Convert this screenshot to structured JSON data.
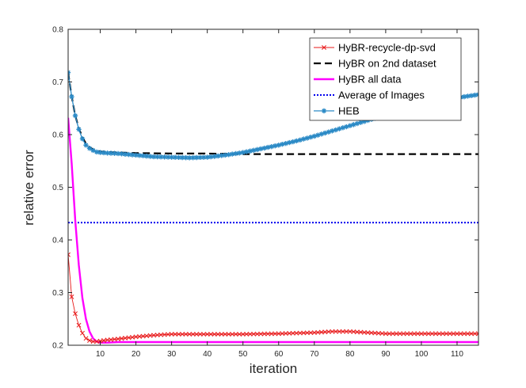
{
  "chart_data": {
    "type": "line",
    "title": "",
    "xlabel": "iteration",
    "ylabel": "relative error",
    "xlim": [
      1,
      116
    ],
    "ylim": [
      0.2,
      0.8
    ],
    "xticks": [
      10,
      20,
      30,
      40,
      50,
      60,
      70,
      80,
      90,
      100,
      110
    ],
    "yticks": [
      0.2,
      0.3,
      0.4,
      0.5,
      0.6,
      0.7,
      0.8
    ],
    "grid": false,
    "legend_position": "top-right",
    "series": [
      {
        "name": "HyBR-recycle-dp-svd",
        "color": "#e8191a",
        "style": "solid-thin",
        "marker": "x",
        "x": [
          1,
          2,
          3,
          4,
          5,
          6,
          7,
          8,
          9,
          10,
          12,
          15,
          20,
          25,
          30,
          40,
          50,
          60,
          70,
          75,
          80,
          85,
          90,
          100,
          110,
          116
        ],
        "y": [
          0.372,
          0.292,
          0.26,
          0.238,
          0.223,
          0.213,
          0.209,
          0.207,
          0.207,
          0.208,
          0.21,
          0.212,
          0.216,
          0.219,
          0.221,
          0.221,
          0.221,
          0.222,
          0.224,
          0.226,
          0.226,
          0.224,
          0.222,
          0.222,
          0.222,
          0.222
        ]
      },
      {
        "name": "HyBR on 2nd dataset",
        "color": "#000000",
        "style": "dashed",
        "marker": "none",
        "x": [
          1,
          2,
          3,
          4,
          5,
          6,
          7,
          8,
          10,
          12,
          15,
          20,
          30,
          40,
          50,
          60,
          80,
          100,
          116
        ],
        "y": [
          0.718,
          0.672,
          0.636,
          0.612,
          0.595,
          0.583,
          0.576,
          0.572,
          0.568,
          0.567,
          0.566,
          0.565,
          0.564,
          0.564,
          0.563,
          0.563,
          0.563,
          0.563,
          0.563
        ]
      },
      {
        "name": "HyBR all data",
        "color": "#ff00ff",
        "style": "solid-thick",
        "marker": "none",
        "x": [
          1,
          2,
          3,
          4,
          5,
          6,
          7,
          8,
          9,
          10,
          12,
          15,
          20,
          40,
          60,
          80,
          100,
          116
        ],
        "y": [
          0.632,
          0.545,
          0.437,
          0.352,
          0.29,
          0.25,
          0.226,
          0.213,
          0.207,
          0.205,
          0.205,
          0.206,
          0.206,
          0.206,
          0.206,
          0.206,
          0.206,
          0.206
        ]
      },
      {
        "name": "Average of Images",
        "color": "#0000ee",
        "style": "dotted",
        "marker": "none",
        "x": [
          1,
          116
        ],
        "y": [
          0.433,
          0.433
        ]
      },
      {
        "name": "HEB",
        "color": "#2b8ac6",
        "style": "solid",
        "marker": "star",
        "x": [
          1,
          2,
          3,
          4,
          5,
          6,
          7,
          8,
          9,
          10,
          12,
          15,
          20,
          25,
          30,
          35,
          40,
          45,
          50,
          55,
          60,
          65,
          70,
          75,
          80,
          85,
          90,
          95,
          100,
          105,
          110,
          116
        ],
        "y": [
          0.718,
          0.672,
          0.636,
          0.61,
          0.592,
          0.58,
          0.574,
          0.57,
          0.567,
          0.566,
          0.565,
          0.564,
          0.561,
          0.558,
          0.557,
          0.556,
          0.557,
          0.561,
          0.566,
          0.573,
          0.58,
          0.588,
          0.597,
          0.607,
          0.617,
          0.627,
          0.637,
          0.646,
          0.655,
          0.663,
          0.67,
          0.676
        ]
      }
    ]
  }
}
